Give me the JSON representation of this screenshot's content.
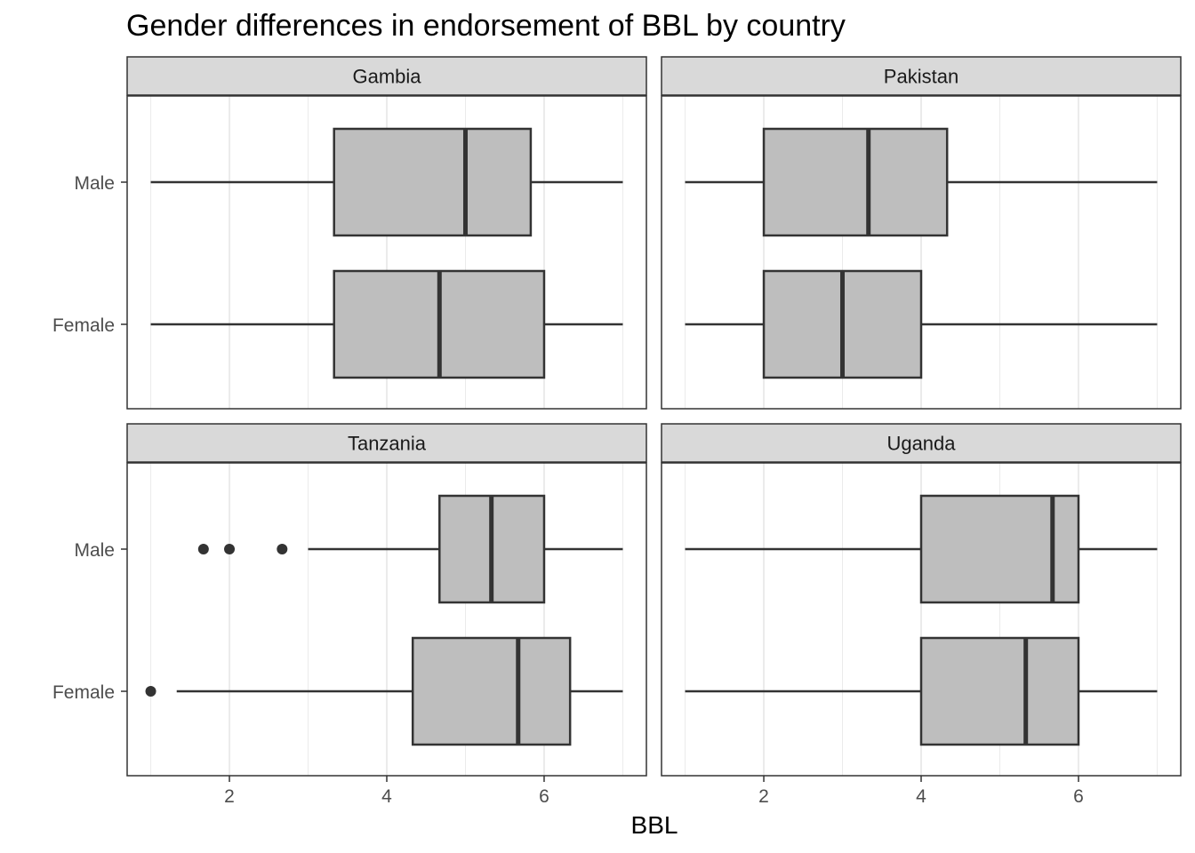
{
  "chart_data": {
    "type": "boxplot",
    "title": "Gender differences in endorsement of BBL by country",
    "xlabel": "BBL",
    "ylabel": "",
    "xlim": [
      0.7,
      7.3
    ],
    "x_ticks": [
      2,
      4,
      6
    ],
    "categories": [
      "Male",
      "Female"
    ],
    "grid": true,
    "colors": {
      "box_fill": "#bebebe",
      "box_line": "#333333",
      "strip_fill": "#d9d9d9",
      "grid": "#ebebeb"
    },
    "panels": [
      {
        "name": "Gambia",
        "series": [
          {
            "group": "Male",
            "min": 1.0,
            "q1": 3.33,
            "median": 5.0,
            "q3": 5.83,
            "max": 7.0,
            "outliers": []
          },
          {
            "group": "Female",
            "min": 1.0,
            "q1": 3.33,
            "median": 4.67,
            "q3": 6.0,
            "max": 7.0,
            "outliers": []
          }
        ]
      },
      {
        "name": "Pakistan",
        "series": [
          {
            "group": "Male",
            "min": 1.0,
            "q1": 2.0,
            "median": 3.33,
            "q3": 4.33,
            "max": 7.0,
            "outliers": []
          },
          {
            "group": "Female",
            "min": 1.0,
            "q1": 2.0,
            "median": 3.0,
            "q3": 4.0,
            "max": 7.0,
            "outliers": []
          }
        ]
      },
      {
        "name": "Tanzania",
        "series": [
          {
            "group": "Male",
            "min": 3.0,
            "q1": 4.67,
            "median": 5.33,
            "q3": 6.0,
            "max": 7.0,
            "outliers": [
              1.67,
              2.0,
              2.67
            ]
          },
          {
            "group": "Female",
            "min": 1.33,
            "q1": 4.33,
            "median": 5.67,
            "q3": 6.33,
            "max": 7.0,
            "outliers": [
              1.0
            ]
          }
        ]
      },
      {
        "name": "Uganda",
        "series": [
          {
            "group": "Male",
            "min": 1.0,
            "q1": 4.0,
            "median": 5.67,
            "q3": 6.0,
            "max": 7.0,
            "outliers": []
          },
          {
            "group": "Female",
            "min": 1.0,
            "q1": 4.0,
            "median": 5.33,
            "q3": 6.0,
            "max": 7.0,
            "outliers": []
          }
        ]
      }
    ]
  }
}
